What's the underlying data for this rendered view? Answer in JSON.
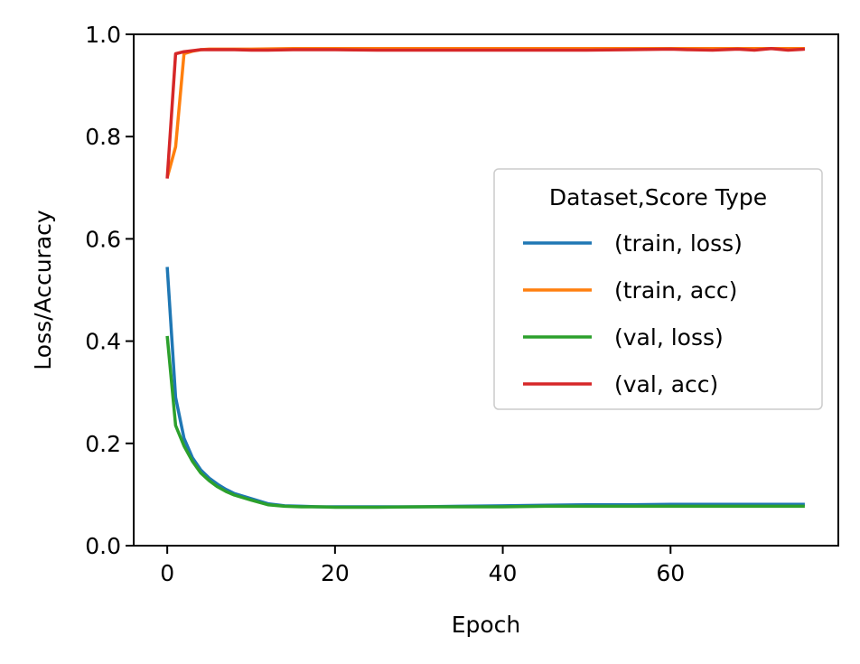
{
  "chart_data": {
    "type": "line",
    "title": "",
    "xlabel": "Epoch",
    "ylabel": "Loss/Accuracy",
    "xlim": [
      -4,
      80
    ],
    "ylim": [
      0,
      1
    ],
    "xticks": [
      0,
      20,
      40,
      60
    ],
    "yticks": [
      0.0,
      0.2,
      0.4,
      0.6,
      0.8,
      1.0
    ],
    "xtick_labels": [
      "0",
      "20",
      "40",
      "60"
    ],
    "ytick_labels": [
      "0.0",
      "0.2",
      "0.4",
      "0.6",
      "0.8",
      "1.0"
    ],
    "grid": false,
    "legend": {
      "title": "Dataset,Score Type",
      "placement": "center-right"
    },
    "series": [
      {
        "name": "(train, loss)",
        "color": "#1f77b4",
        "x": [
          0,
          1,
          2,
          3,
          4,
          5,
          6,
          7,
          8,
          10,
          12,
          14,
          16,
          18,
          20,
          25,
          30,
          35,
          40,
          45,
          50,
          55,
          60,
          65,
          70,
          76
        ],
        "y": [
          0.545,
          0.29,
          0.21,
          0.172,
          0.148,
          0.132,
          0.12,
          0.11,
          0.102,
          0.092,
          0.082,
          0.078,
          0.077,
          0.076,
          0.076,
          0.076,
          0.076,
          0.077,
          0.078,
          0.079,
          0.08,
          0.08,
          0.081,
          0.081,
          0.081,
          0.081
        ]
      },
      {
        "name": "(train, acc)",
        "color": "#ff7f0e",
        "x": [
          0,
          1,
          2,
          3,
          4,
          5,
          6,
          8,
          10,
          15,
          20,
          25,
          30,
          35,
          40,
          45,
          50,
          55,
          60,
          65,
          70,
          76
        ],
        "y": [
          0.72,
          0.78,
          0.962,
          0.967,
          0.97,
          0.971,
          0.971,
          0.971,
          0.971,
          0.972,
          0.972,
          0.972,
          0.972,
          0.972,
          0.972,
          0.972,
          0.972,
          0.972,
          0.972,
          0.972,
          0.972,
          0.972
        ]
      },
      {
        "name": "(val, loss)",
        "color": "#2ca02c",
        "x": [
          0,
          1,
          2,
          3,
          4,
          5,
          6,
          7,
          8,
          10,
          12,
          14,
          16,
          18,
          20,
          25,
          30,
          35,
          40,
          45,
          50,
          55,
          60,
          65,
          70,
          76
        ],
        "y": [
          0.41,
          0.235,
          0.195,
          0.165,
          0.142,
          0.127,
          0.115,
          0.106,
          0.099,
          0.089,
          0.08,
          0.077,
          0.076,
          0.076,
          0.075,
          0.075,
          0.076,
          0.076,
          0.076,
          0.077,
          0.077,
          0.077,
          0.077,
          0.077,
          0.077,
          0.077
        ]
      },
      {
        "name": "(val, acc)",
        "color": "#d62728",
        "x": [
          0,
          1,
          2,
          3,
          4,
          5,
          6,
          8,
          10,
          12,
          15,
          20,
          25,
          30,
          35,
          40,
          45,
          50,
          55,
          60,
          62,
          65,
          68,
          70,
          72,
          74,
          76
        ],
        "y": [
          0.718,
          0.962,
          0.966,
          0.968,
          0.97,
          0.97,
          0.97,
          0.97,
          0.969,
          0.969,
          0.97,
          0.97,
          0.969,
          0.969,
          0.969,
          0.969,
          0.969,
          0.969,
          0.97,
          0.971,
          0.97,
          0.969,
          0.971,
          0.969,
          0.972,
          0.969,
          0.971
        ]
      }
    ]
  }
}
